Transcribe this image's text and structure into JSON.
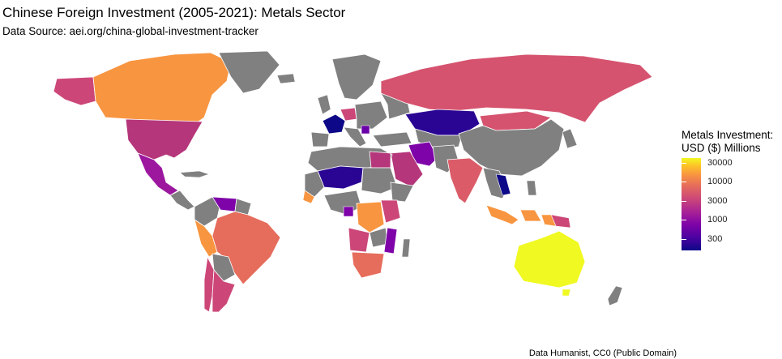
{
  "title": "Chinese Foreign Investment (2005-2021): Metals Sector",
  "subtitle": "Data Source: aei.org/china-global-investment-tracker",
  "caption": "Data Humanist, CC0 (Public Domain)",
  "legend": {
    "title_line1": "Metals Investment:",
    "title_line2": "USD ($) Millions",
    "scale": "log",
    "ticks": [
      "30000",
      "10000",
      "3000",
      "1000",
      "300"
    ],
    "palette": "plasma"
  },
  "colors": {
    "no_data": "#808080",
    "low": "#0d0887",
    "high": "#f0f921"
  },
  "chart_data": {
    "type": "choropleth",
    "value_label": "Metals Investment: USD ($) Millions",
    "scale": "log",
    "range": [
      150,
      34000
    ],
    "regions": [
      {
        "name": "Australia",
        "value": 31000
      },
      {
        "name": "Canada",
        "value": 8000
      },
      {
        "name": "Peru",
        "value": 7000
      },
      {
        "name": "DR Congo",
        "value": 6000
      },
      {
        "name": "Indonesia",
        "value": 5500
      },
      {
        "name": "Brazil",
        "value": 4500
      },
      {
        "name": "South Africa",
        "value": 4000
      },
      {
        "name": "Russia",
        "value": 2000
      },
      {
        "name": "Zambia",
        "value": 2000
      },
      {
        "name": "Guinea",
        "value": 2500
      },
      {
        "name": "Papua New Guinea",
        "value": 3500
      },
      {
        "name": "India",
        "value": 2000
      },
      {
        "name": "United States",
        "value": 1300
      },
      {
        "name": "Chile",
        "value": 1400
      },
      {
        "name": "Argentina",
        "value": 1200
      },
      {
        "name": "Saudi Arabia",
        "value": 1100
      },
      {
        "name": "Egypt",
        "value": 1000
      },
      {
        "name": "Angola",
        "value": 900
      },
      {
        "name": "Germany",
        "value": 1000
      },
      {
        "name": "Mexico",
        "value": 700
      },
      {
        "name": "Iran",
        "value": 600
      },
      {
        "name": "Gabon",
        "value": 400
      },
      {
        "name": "Mozambique",
        "value": 400
      },
      {
        "name": "France",
        "value": 250
      },
      {
        "name": "Kazakhstan",
        "value": 200
      },
      {
        "name": "Mali",
        "value": 200
      },
      {
        "name": "Niger",
        "value": 200
      },
      {
        "name": "Laos",
        "value": 200
      },
      {
        "name": "Venezuela",
        "value": 400
      }
    ]
  }
}
